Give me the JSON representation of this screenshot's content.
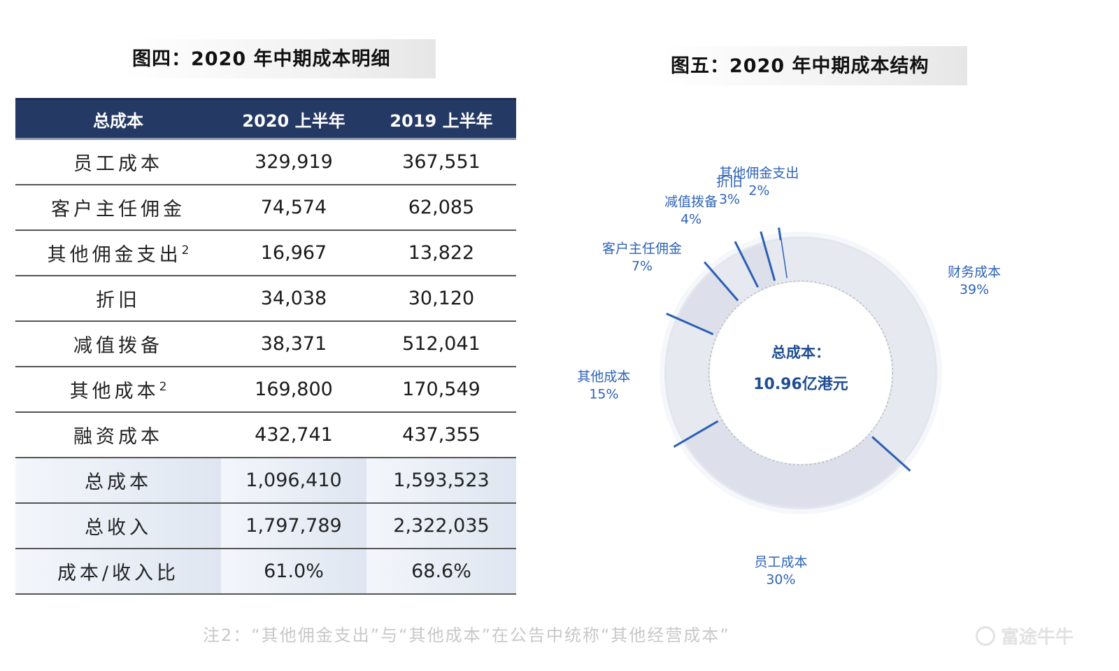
{
  "left_title": "图四：2020 年中期成本明细",
  "right_title": "图五：2020 年中期成本结构",
  "table": {
    "headers": [
      "总成本",
      "2020 上半年",
      "2019 上半年"
    ],
    "rows": [
      {
        "label": "员工成本",
        "sup": "",
        "v2020": "329,919",
        "v2019": "367,551"
      },
      {
        "label": "客户主任佣金",
        "sup": "",
        "v2020": "74,574",
        "v2019": "62,085"
      },
      {
        "label": "其他佣金支出",
        "sup": "2",
        "v2020": "16,967",
        "v2019": "13,822"
      },
      {
        "label": "折旧",
        "sup": "",
        "v2020": "34,038",
        "v2019": "30,120"
      },
      {
        "label": "减值拨备",
        "sup": "",
        "v2020": "38,371",
        "v2019": "512,041"
      },
      {
        "label": "其他成本",
        "sup": "2",
        "v2020": "169,800",
        "v2019": "170,549"
      },
      {
        "label": "融资成本",
        "sup": "",
        "v2020": "432,741",
        "v2019": "437,355"
      },
      {
        "label": "总成本",
        "sup": "",
        "v2020": "1,096,410",
        "v2019": "1,593,523"
      },
      {
        "label": "总收入",
        "sup": "",
        "v2020": "1,797,789",
        "v2019": "2,322,035"
      },
      {
        "label": "成本/收入比",
        "sup": "",
        "v2020": "61.0%",
        "v2019": "68.6%"
      }
    ]
  },
  "chart_data": {
    "type": "pie",
    "title": "图五：2020 年中期成本结构",
    "center_label": "总成本：",
    "center_value": "10.96亿港元",
    "categories": [
      "财务成本",
      "员工成本",
      "其他成本",
      "客户主任佣金",
      "减值拨备",
      "折旧",
      "其他佣金支出"
    ],
    "values": [
      39,
      30,
      15,
      7,
      4,
      3,
      2
    ],
    "value_labels": [
      "39%",
      "30%",
      "15%",
      "7%",
      "4%",
      "3%",
      "2%"
    ],
    "colors": {
      "ring": "#e4e6ee",
      "separator": "#2a5fb4",
      "label": "#2e63b8",
      "center": "#1f4d91"
    }
  },
  "footnote": "注2：“其他佣金支出”与“其他成本”在公告中统称“其他经营成本”",
  "watermark": "富途牛牛"
}
